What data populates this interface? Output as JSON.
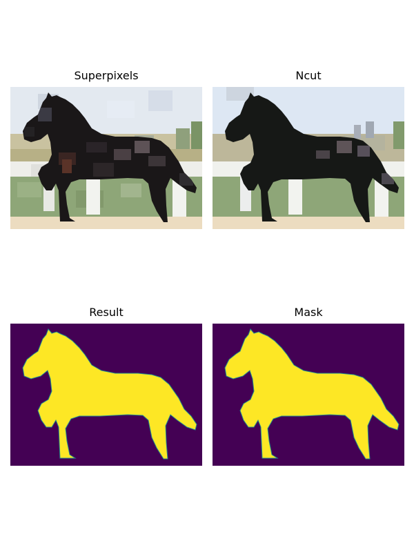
{
  "panels": [
    {
      "title": "Superpixels"
    },
    {
      "title": "Ncut"
    },
    {
      "title": "Result"
    },
    {
      "title": "Mask"
    }
  ],
  "colors": {
    "mask_background": "#440154",
    "mask_foreground": "#fde725",
    "mask_edge": "#21918c",
    "horse": "#161816",
    "sky": "#dde7f3",
    "grass": "#8ea678",
    "fence": "#f2f3ef",
    "ground": "#ecdcc0"
  }
}
